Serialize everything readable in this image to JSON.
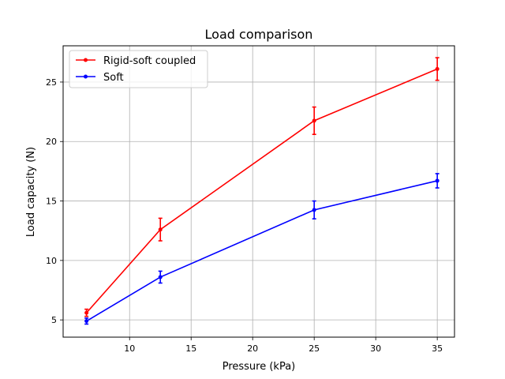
{
  "chart_data": {
    "type": "line",
    "title": "Load comparison",
    "xlabel": "Pressure (kPa)",
    "ylabel": "Load capacity (N)",
    "xlim": [
      4.6,
      36.4
    ],
    "ylim": [
      3.55,
      28.05
    ],
    "xticks": [
      10,
      15,
      20,
      25,
      30,
      35
    ],
    "yticks": [
      5,
      10,
      15,
      20,
      25
    ],
    "grid": true,
    "legend_position": "top-left",
    "series": [
      {
        "name": "Rigid-soft coupled",
        "color": "#ff0000",
        "x": [
          6.5,
          12.5,
          25,
          35
        ],
        "y": [
          5.6,
          12.6,
          21.75,
          26.1
        ],
        "err": [
          0.3,
          0.95,
          1.15,
          0.95
        ]
      },
      {
        "name": "Soft",
        "color": "#0000ff",
        "x": [
          6.5,
          12.5,
          25,
          35
        ],
        "y": [
          4.9,
          8.6,
          14.25,
          16.7
        ],
        "err": [
          0.25,
          0.5,
          0.75,
          0.6
        ]
      }
    ]
  }
}
